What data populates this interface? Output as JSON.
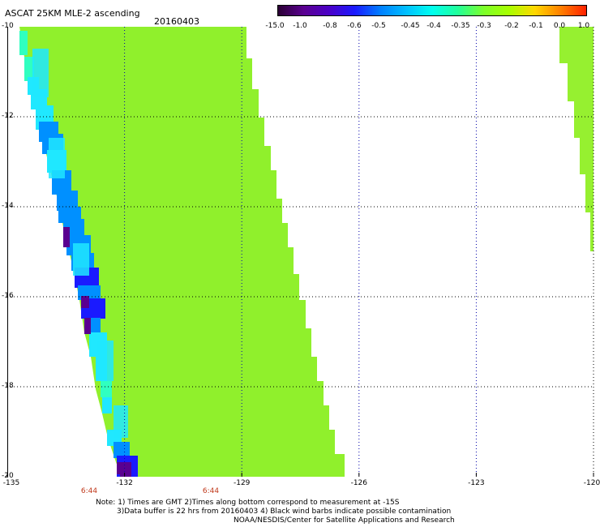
{
  "header": {
    "title": "ASCAT 25KM MLE-2 ascending",
    "date": "20160403"
  },
  "colorbar": {
    "ticks": [
      "-15.0",
      "-1.0",
      "-0.8",
      "-0.6",
      "-0.5",
      "-0.45",
      "-0.4",
      "-0.35",
      "-0.3",
      "-0.2",
      "-0.1",
      "0.0",
      "1.0"
    ],
    "colors": [
      "#2a0033",
      "#5a0090",
      "#4a00c8",
      "#1a1aff",
      "#0080ff",
      "#00c0ff",
      "#00ffee",
      "#20ff9a",
      "#7cff2a",
      "#a8ff00",
      "#ffd800",
      "#ff8000",
      "#ff2000"
    ]
  },
  "axes": {
    "lat_labels": [
      "-10",
      "-12",
      "-14",
      "-16",
      "-18",
      "-20"
    ],
    "lon_labels": [
      "-135",
      "-132",
      "-129",
      "-126",
      "-123",
      "-120"
    ],
    "time_labels": [
      "6:44",
      "6:44"
    ]
  },
  "map": {
    "main_swath_color": "#90f02c",
    "minor_swath_color": "#96f030",
    "low_value_colors": [
      "#5a0090",
      "#1a1aff",
      "#0090ff",
      "#20e8ff",
      "#30ffc0"
    ]
  },
  "notes": {
    "line1": "Note: 1) Times are GMT 2)Times along bottom correspond to measurement at -15S",
    "line2": "3)Data buffer is 22 hrs from 20160403 4) Black wind barbs indicate possible contamination",
    "credit": "NOAA/NESDIS/Center for Satellite Applications and Research"
  }
}
